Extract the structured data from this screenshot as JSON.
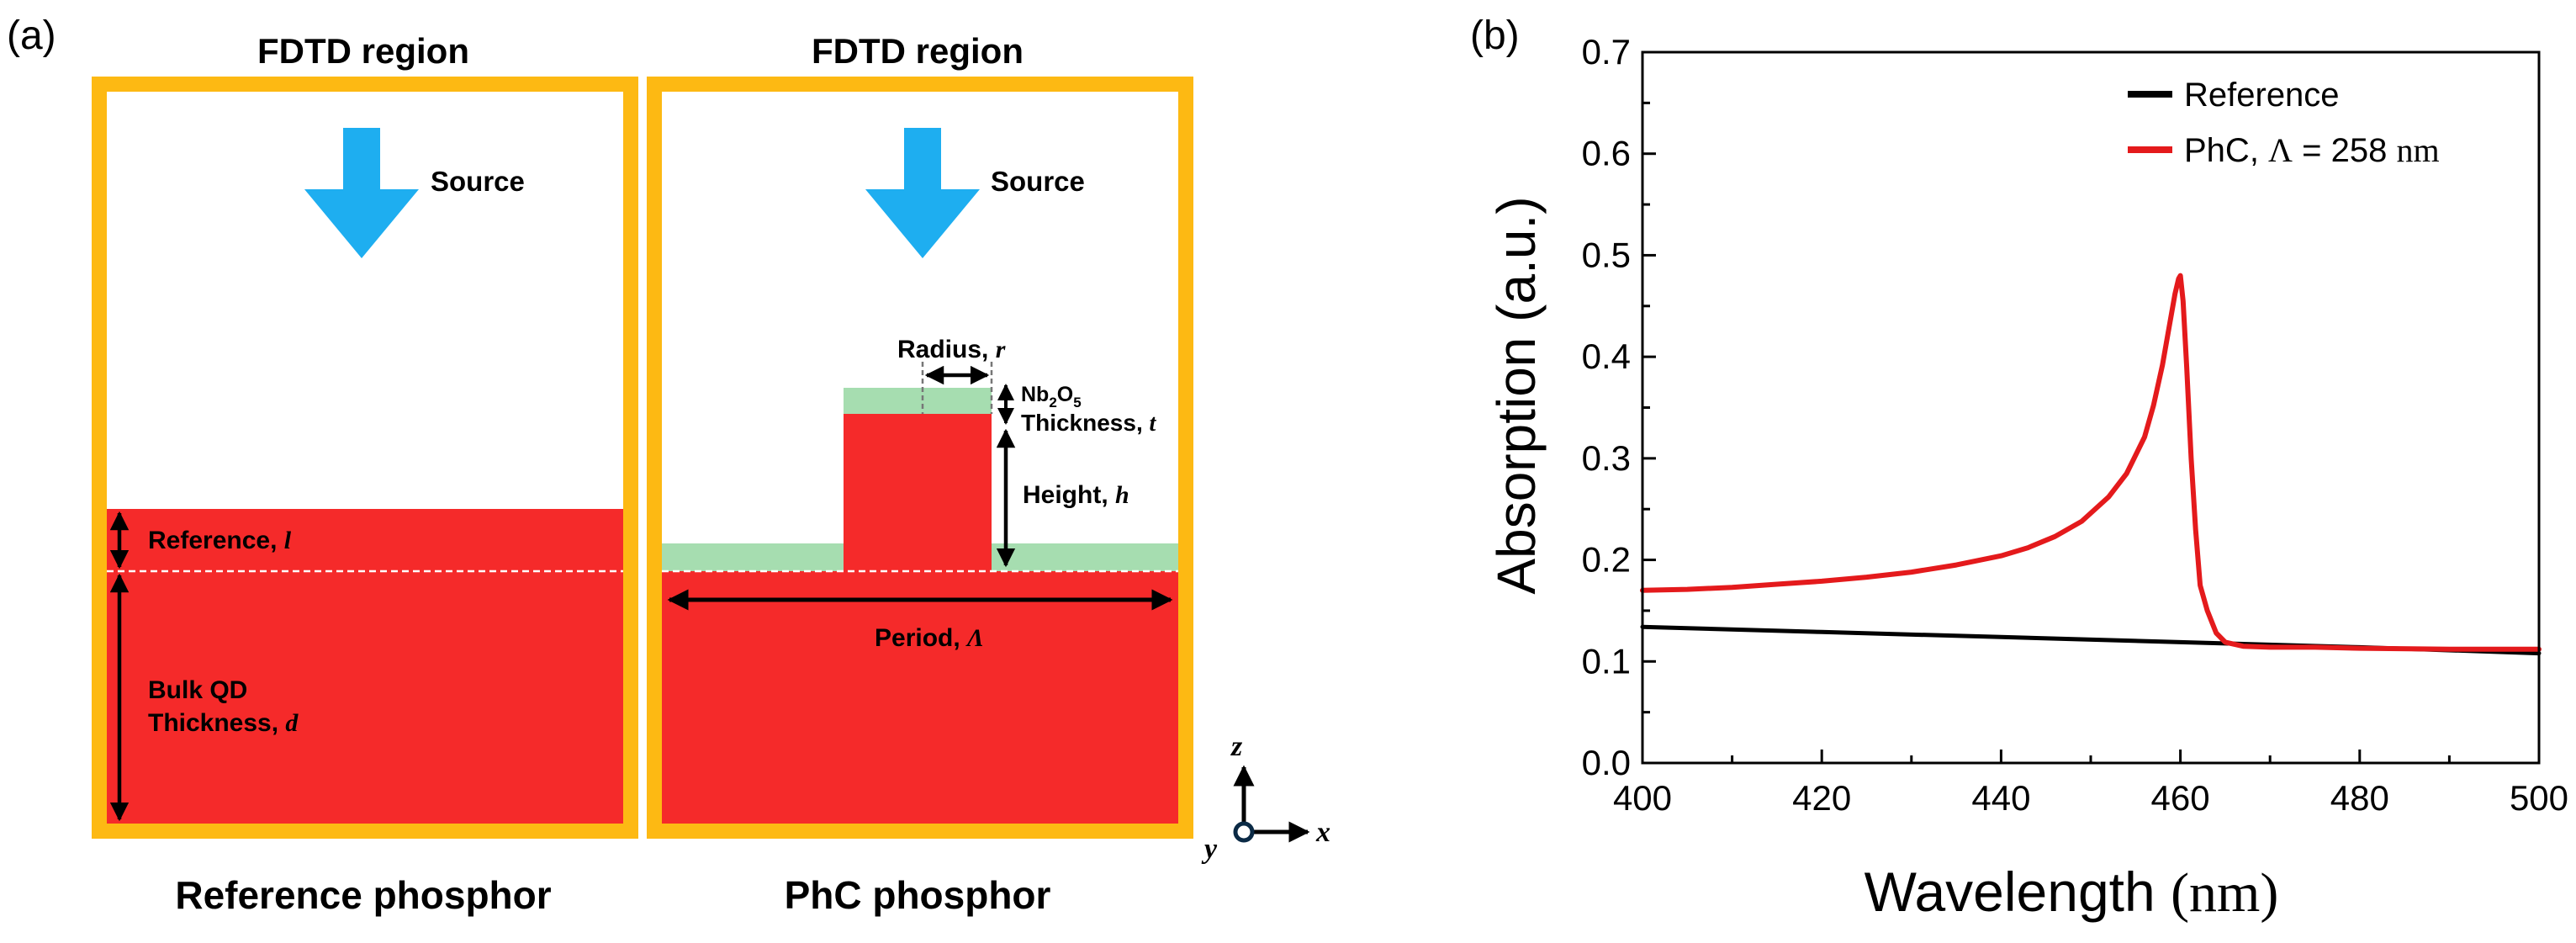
{
  "panel_a": {
    "panel_label": "(a)",
    "left_box": {
      "title": "FDTD region",
      "source_label": "Source",
      "reference_label": "Reference, ",
      "reference_var": "l",
      "bulk_label_line1": "Bulk QD",
      "bulk_label_line2": "Thickness, ",
      "bulk_var": "d",
      "caption": "Reference phosphor"
    },
    "right_box": {
      "title": "FDTD region",
      "source_label": "Source",
      "radius_label": "Radius, ",
      "radius_var": "r",
      "nb_label_base": "Nb",
      "nb_sub1": "2",
      "nb_mid": "O",
      "nb_sub2": "5",
      "thickness_label": "Thickness, ",
      "thickness_var": "t",
      "height_label": "Height, ",
      "height_var": "h",
      "period_label": "Period, ",
      "period_var": "Λ",
      "caption": "PhC phosphor"
    },
    "axes_labels": {
      "z": "z",
      "x": "x",
      "y": "y"
    },
    "colors": {
      "box_border": "#FDB913",
      "qd_red": "#F52A2A",
      "nb_green": "#A6DDB0",
      "source_blue": "#1EAEF0"
    }
  },
  "panel_b": {
    "panel_label": "(b)"
  },
  "chart_data": {
    "type": "line",
    "title": "",
    "xlabel": "Wavelength",
    "xlabel_unit": "(nm)",
    "ylabel": "Absorption (a.u.)",
    "xlim": [
      400,
      500
    ],
    "ylim": [
      0.0,
      0.7
    ],
    "x_ticks": [
      "400",
      "420",
      "440",
      "460",
      "480",
      "500"
    ],
    "y_ticks": [
      "0.0",
      "0.1",
      "0.2",
      "0.3",
      "0.4",
      "0.5",
      "0.6",
      "0.7"
    ],
    "legend_position": "top-right",
    "series": [
      {
        "name": "Reference",
        "color": "#000000",
        "x": [
          400,
          420,
          440,
          460,
          480,
          500
        ],
        "y": [
          0.134,
          0.129,
          0.124,
          0.119,
          0.114,
          0.108
        ]
      },
      {
        "name": "PhC, Λ = 258 nm",
        "name_prefix": "PhC, ",
        "name_symbol": "Λ",
        "name_eq": " = 258 ",
        "name_unit": "nm",
        "color": "#E41A1C",
        "x": [
          400,
          405,
          410,
          415,
          420,
          425,
          430,
          435,
          440,
          443,
          446,
          449,
          452,
          454,
          456,
          457,
          458,
          458.8,
          459.4,
          459.8,
          460.0,
          460.3,
          460.7,
          461.2,
          461.7,
          462.2,
          463.0,
          464.0,
          465.0,
          467,
          470,
          475,
          480,
          490,
          500
        ],
        "y": [
          0.17,
          0.171,
          0.173,
          0.176,
          0.179,
          0.183,
          0.188,
          0.195,
          0.204,
          0.212,
          0.223,
          0.238,
          0.262,
          0.285,
          0.321,
          0.352,
          0.392,
          0.432,
          0.462,
          0.477,
          0.48,
          0.455,
          0.39,
          0.3,
          0.23,
          0.175,
          0.15,
          0.128,
          0.119,
          0.115,
          0.114,
          0.114,
          0.113,
          0.112,
          0.112
        ]
      }
    ]
  }
}
